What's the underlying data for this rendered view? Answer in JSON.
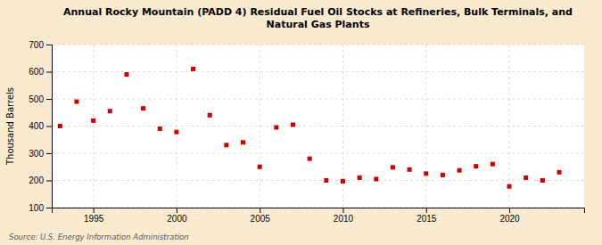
{
  "chart_data": {
    "type": "scatter",
    "title": "Annual Rocky Mountain (PADD 4) Residual Fuel Oil Stocks at Refineries, Bulk Terminals, and\nNatural Gas Plants",
    "ylabel": "Thousand Barrels",
    "annotations": [
      "Source: U.S. Energy Information Administration"
    ],
    "x": [
      1993,
      1994,
      1995,
      1996,
      1997,
      1998,
      1999,
      2000,
      2001,
      2002,
      2003,
      2004,
      2005,
      2006,
      2007,
      2008,
      2009,
      2010,
      2011,
      2012,
      2013,
      2014,
      2015,
      2016,
      2017,
      2018,
      2019,
      2020,
      2021,
      2022,
      2023
    ],
    "values": [
      400,
      490,
      420,
      455,
      590,
      465,
      390,
      378,
      610,
      440,
      330,
      340,
      250,
      395,
      405,
      280,
      200,
      197,
      210,
      205,
      248,
      240,
      225,
      220,
      237,
      252,
      260,
      178,
      210,
      200,
      230
    ],
    "color": "#cc0000",
    "marker": "square",
    "xlim": [
      1992.5,
      2024.5
    ],
    "xticks": [
      1995,
      2000,
      2005,
      2010,
      2015,
      2020
    ],
    "ylim": [
      100,
      700
    ],
    "yticks": [
      100,
      200,
      300,
      400,
      500,
      600,
      700
    ],
    "grid": true
  }
}
